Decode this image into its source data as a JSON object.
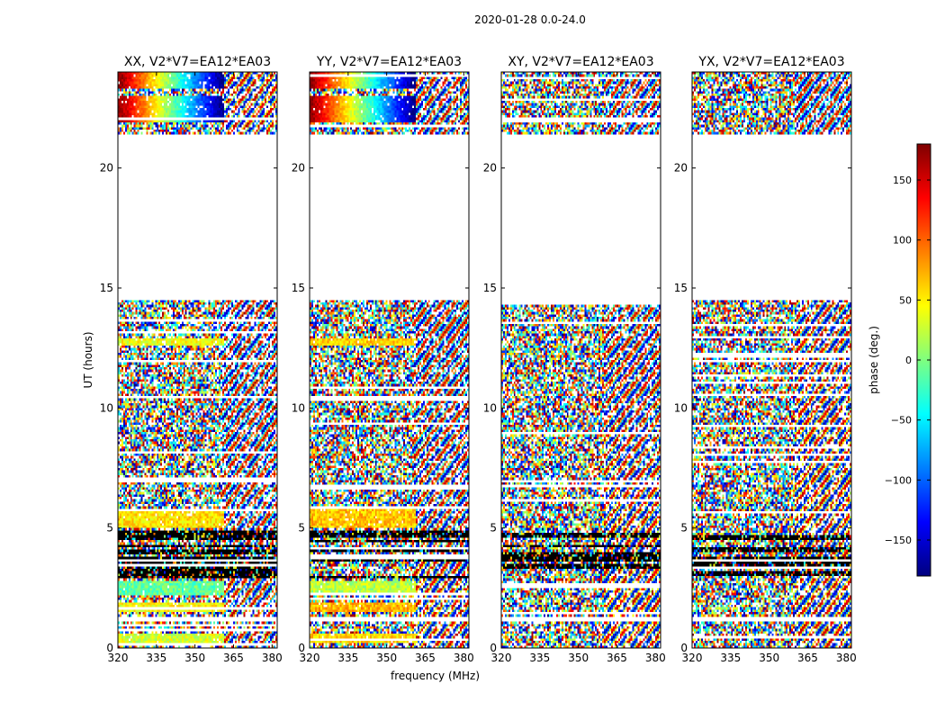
{
  "figure": {
    "suptitle": "2020-01-28 0.0-24.0",
    "xlabel": "frequency (MHz)",
    "ylabel": "UT (hours)"
  },
  "colorbar": {
    "label": "phase (deg.)",
    "range": [
      -180,
      180
    ],
    "ticks": [
      -150,
      -100,
      -50,
      0,
      50,
      100,
      150
    ],
    "tick_labels": [
      "−150",
      "−100",
      "−50",
      "0",
      "50",
      "100",
      "150"
    ],
    "colormap": [
      "#00007f",
      "#0000ff",
      "#007fff",
      "#00ffff",
      "#7fff7f",
      "#ffff00",
      "#ff7f00",
      "#ff0000",
      "#7f0000"
    ]
  },
  "chart_data": [
    {
      "type": "heatmap",
      "title": "XX, V2*V7=EA12*EA03",
      "xlim": [
        320,
        382
      ],
      "ylim": [
        0,
        24
      ],
      "xticks": [
        320,
        335,
        350,
        365,
        380
      ],
      "yticks": [
        0,
        5,
        10,
        15,
        20
      ],
      "value": "phase (deg.)",
      "blanked_ut_ranges": [
        [
          1.1,
          1.3
        ],
        [
          14.5,
          21.4
        ]
      ],
      "coherent_low_freq_phase_bands": [
        {
          "ut": [
            0.2,
            0.6
          ],
          "phase": 30
        },
        {
          "ut": [
            1.5,
            1.9
          ],
          "phase": 45
        },
        {
          "ut": [
            2.2,
            2.8
          ],
          "phase": -10
        },
        {
          "ut": [
            5.0,
            5.8
          ],
          "phase": 55
        },
        {
          "ut": [
            12.6,
            12.9
          ],
          "phase": 40
        },
        {
          "ut": [
            21.9,
            23.0
          ],
          "phase": "-180 to 180 gradient"
        },
        {
          "ut": [
            23.3,
            24.0
          ],
          "phase": "-180 to 180 gradient"
        }
      ]
    },
    {
      "type": "heatmap",
      "title": "YY, V2*V7=EA12*EA03",
      "xlim": [
        320,
        382
      ],
      "ylim": [
        0,
        24
      ],
      "xticks": [
        320,
        335,
        350,
        365,
        380
      ],
      "yticks": [
        0,
        5,
        10,
        15,
        20
      ],
      "value": "phase (deg.)",
      "blanked_ut_ranges": [
        [
          1.1,
          1.3
        ],
        [
          14.5,
          21.4
        ]
      ],
      "coherent_low_freq_phase_bands": [
        {
          "ut": [
            0.2,
            0.6
          ],
          "phase": 60
        },
        {
          "ut": [
            1.5,
            1.9
          ],
          "phase": 70
        },
        {
          "ut": [
            2.2,
            2.8
          ],
          "phase": 20
        },
        {
          "ut": [
            5.0,
            5.8
          ],
          "phase": 65
        },
        {
          "ut": [
            12.6,
            12.9
          ],
          "phase": 60
        },
        {
          "ut": [
            21.9,
            23.0
          ],
          "phase": "-180 to 180 gradient"
        },
        {
          "ut": [
            23.3,
            24.0
          ],
          "phase": "-180 to 180 gradient"
        }
      ]
    },
    {
      "type": "heatmap",
      "title": "XY, V2*V7=EA12*EA03",
      "xlim": [
        320,
        382
      ],
      "ylim": [
        0,
        24
      ],
      "xticks": [
        320,
        335,
        350,
        365,
        380
      ],
      "yticks": [
        0,
        5,
        10,
        15,
        20
      ],
      "value": "phase (deg.)",
      "blanked_ut_ranges": [
        [
          1.1,
          1.3
        ],
        [
          14.5,
          21.4
        ]
      ],
      "coherent_low_freq_phase_bands": []
    },
    {
      "type": "heatmap",
      "title": "YX, V2*V7=EA12*EA03",
      "xlim": [
        320,
        382
      ],
      "ylim": [
        0,
        24
      ],
      "xticks": [
        320,
        335,
        350,
        365,
        380
      ],
      "yticks": [
        0,
        5,
        10,
        15,
        20
      ],
      "value": "phase (deg.)",
      "blanked_ut_ranges": [
        [
          1.1,
          1.3
        ],
        [
          14.5,
          21.4
        ]
      ],
      "coherent_low_freq_phase_bands": []
    }
  ]
}
